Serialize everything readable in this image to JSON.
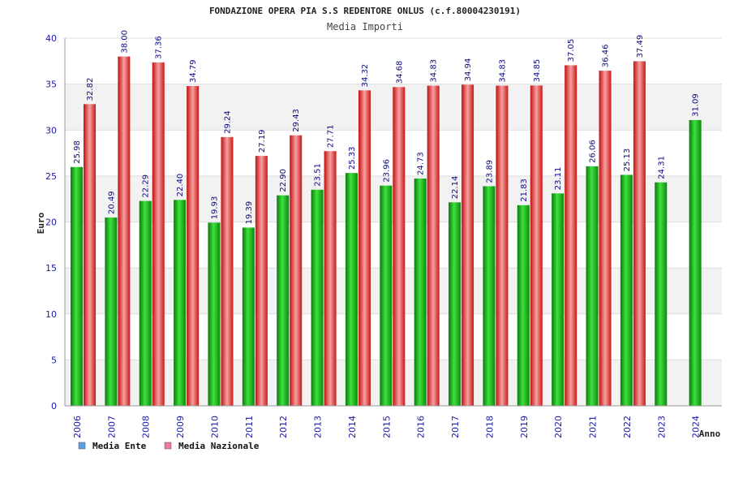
{
  "chart_data": {
    "type": "bar",
    "title": "FONDAZIONE OPERA PIA S.S REDENTORE ONLUS (c.f.80004230191)",
    "subtitle": "Media Importi",
    "xlabel": "Anno",
    "ylabel": "Euro",
    "ylim": [
      0,
      40
    ],
    "yticks": [
      0,
      5,
      10,
      15,
      20,
      25,
      30,
      35,
      40
    ],
    "grid": true,
    "legend_position": "bottom-left",
    "categories": [
      "2006",
      "2007",
      "2008",
      "2009",
      "2010",
      "2011",
      "2012",
      "2013",
      "2014",
      "2015",
      "2016",
      "2017",
      "2018",
      "2019",
      "2020",
      "2021",
      "2022",
      "2023",
      "2024"
    ],
    "series": [
      {
        "name": "Media Ente",
        "bar_color": "#10b010",
        "legend_color": "#5a9ee8",
        "values": [
          25.98,
          20.49,
          22.29,
          22.4,
          19.93,
          19.39,
          22.9,
          23.51,
          25.33,
          23.96,
          24.73,
          22.14,
          23.89,
          21.83,
          23.11,
          26.06,
          25.13,
          24.31,
          31.09
        ],
        "labels": [
          "25.98",
          "20.49",
          "22.29",
          "22.40",
          "19.93",
          "19.39",
          "22.90",
          "23.51",
          "25.33",
          "23.96",
          "24.73",
          "22.14",
          "23.89",
          "21.83",
          "23.11",
          "26.06",
          "25.13",
          "24.31",
          "31.09"
        ]
      },
      {
        "name": "Media Nazionale",
        "bar_color": "#e02020",
        "legend_color": "#e87aa8",
        "values": [
          32.82,
          38.0,
          37.36,
          34.79,
          29.24,
          27.19,
          29.43,
          27.71,
          34.32,
          34.68,
          34.83,
          34.94,
          34.83,
          34.85,
          37.05,
          36.46,
          37.49,
          null,
          null
        ],
        "labels": [
          "32.82",
          "38.00",
          "37.36",
          "34.79",
          "29.24",
          "27.19",
          "29.43",
          "27.71",
          "34.32",
          "34.68",
          "34.83",
          "34.94",
          "34.83",
          "34.85",
          "37.05",
          "36.46",
          "37.49",
          null,
          null
        ]
      }
    ]
  }
}
